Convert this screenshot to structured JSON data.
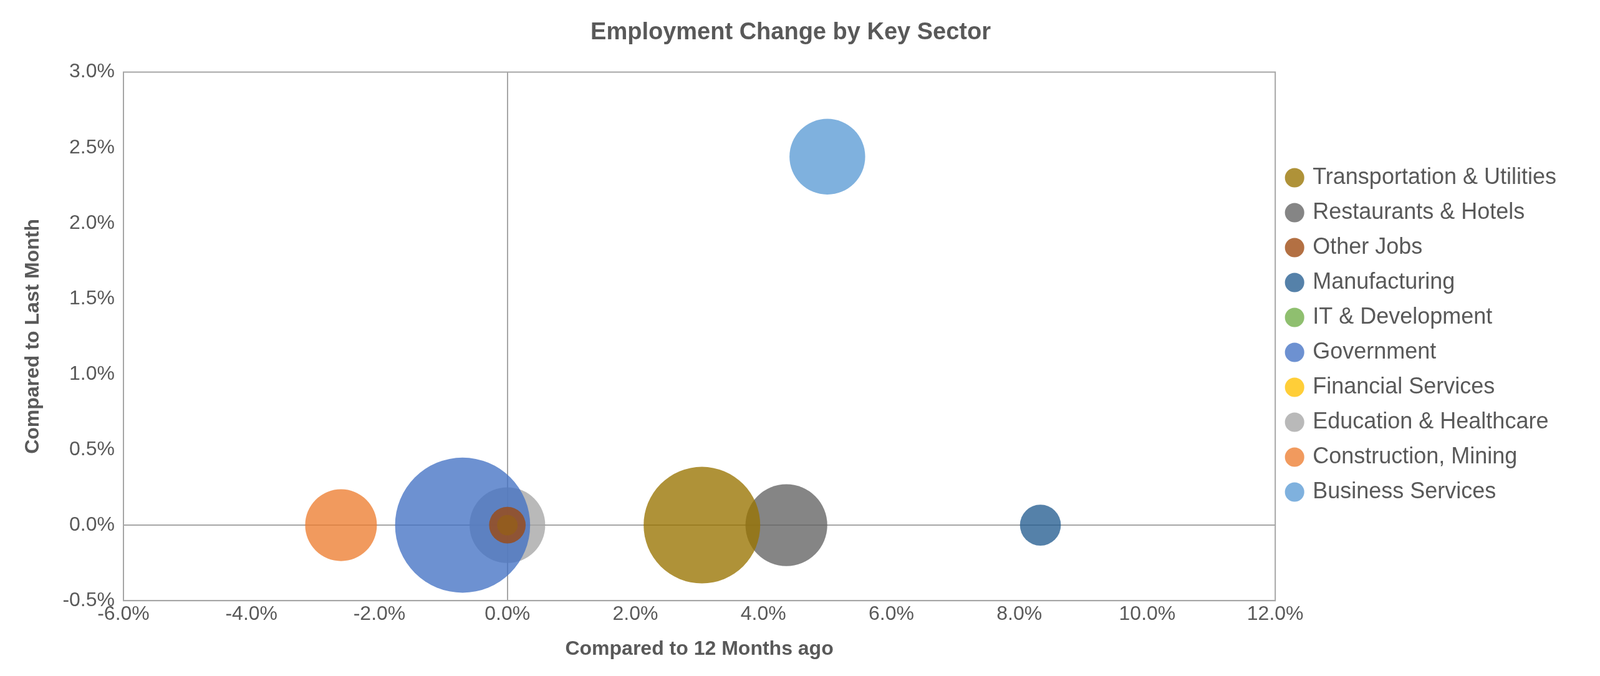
{
  "chart_data": {
    "type": "bubble",
    "title": "Employment Change by Key Sector",
    "x_label": "Compared to 12 Months ago",
    "y_label": "Compared to Last Month",
    "xlim": [
      -6,
      12
    ],
    "xticks": [
      {
        "value": -6,
        "label": "-6.0%"
      },
      {
        "value": -4,
        "label": "-4.0%"
      },
      {
        "value": -2,
        "label": "-2.0%"
      },
      {
        "value": 0,
        "label": "0.0%"
      },
      {
        "value": 2,
        "label": "2.0%"
      },
      {
        "value": 4,
        "label": "4.0%"
      },
      {
        "value": 6,
        "label": "6.0%"
      },
      {
        "value": 8,
        "label": "8.0%"
      },
      {
        "value": 10,
        "label": "10.0%"
      },
      {
        "value": 12,
        "label": "12.0%"
      }
    ],
    "ylim": [
      -0.5,
      3
    ],
    "yticks": [
      {
        "value": -0.5,
        "label": "-0.5%"
      },
      {
        "value": 0,
        "label": "0.0%"
      },
      {
        "value": 0.5,
        "label": "0.5%"
      },
      {
        "value": 1,
        "label": "1.0%"
      },
      {
        "value": 1.5,
        "label": "1.5%"
      },
      {
        "value": 2,
        "label": "2.0%"
      },
      {
        "value": 2.5,
        "label": "2.5%"
      },
      {
        "value": 3,
        "label": "3.0%"
      }
    ],
    "grid": false,
    "legend": "right",
    "series": [
      {
        "name": "Business Services",
        "color": "#5B9BD5",
        "x": [
          5.0
        ],
        "values": [
          2.44
        ],
        "sizes": [
          13.7
        ]
      },
      {
        "name": "Construction, Mining",
        "color": "#ED7D31",
        "x": [
          -2.6
        ],
        "values": [
          0
        ],
        "sizes": [
          12.3
        ]
      },
      {
        "name": "Education & Healthcare",
        "color": "#A5A5A5",
        "x": [
          0.0
        ],
        "values": [
          0
        ],
        "sizes": [
          13.7
        ]
      },
      {
        "name": "Financial Services",
        "color": "#FFC000",
        "x": [
          0.0
        ],
        "values": [
          0
        ],
        "sizes": [
          1.0
        ]
      },
      {
        "name": "Government",
        "color": "#4472C4",
        "x": [
          -0.7
        ],
        "values": [
          0
        ],
        "sizes": [
          43.6
        ]
      },
      {
        "name": "IT & Development",
        "color": "#70AD47",
        "x": [
          0.0
        ],
        "values": [
          0
        ],
        "sizes": [
          1.0
        ]
      },
      {
        "name": "Manufacturing",
        "color": "#255E91",
        "x": [
          8.33
        ],
        "values": [
          0
        ],
        "sizes": [
          4.0
        ]
      },
      {
        "name": "Other Jobs",
        "color": "#9E480E",
        "x": [
          0.0
        ],
        "values": [
          0
        ],
        "sizes": [
          3.2
        ]
      },
      {
        "name": "Restaurants & Hotels",
        "color": "#636363",
        "x": [
          4.36
        ],
        "values": [
          0
        ],
        "sizes": [
          16.0
        ]
      },
      {
        "name": "Transportation & Utilities",
        "color": "#997300",
        "x": [
          3.04
        ],
        "values": [
          0
        ],
        "sizes": [
          32.5
        ]
      }
    ]
  }
}
